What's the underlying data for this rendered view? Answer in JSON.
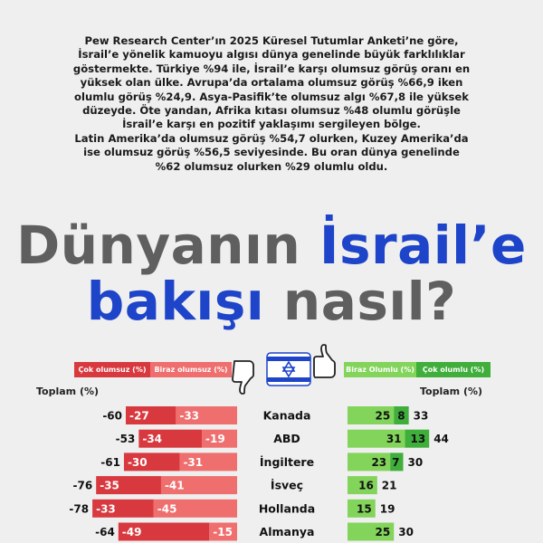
{
  "intro_lines": [
    "Pew Research Center’ın 2025 Küresel Tutumlar Anketi’ne göre,",
    "İsrail’e yönelik kamuoyu algısı dünya genelinde büyük farklılıklar",
    "göstermekte. Türkiye %94 ile, İsrail’e karşı olumsuz görüş oranı en",
    "yüksek olan ülke. Avrupa’da ortalama olumsuz görüş %66,9 iken",
    "olumlu görüş %24,9. Asya-Pasifik’te olumsuz algı %67,8 ile yüksek",
    "düzeyde. Öte yandan, Afrika kıtası olumsuz %48 olumlu görüşle",
    "İsrail’e karşı en pozitif yaklaşımı sergileyen bölge.",
    "Latin Amerika’da olumsuz görüş %54,7 olurken, Kuzey Amerika’da",
    "ise olumsuz görüş %56,5 seviyesinde. Bu oran dünya genelinde",
    "%62 olumsuz olurken %29 olumlu oldu."
  ],
  "title": {
    "line1_part1": "Dünyanın ",
    "line1_part2": "İsrail’e",
    "line2_part1": "bakışı",
    "line2_part2": " nasıl?"
  },
  "legend": {
    "very_negative": "Çok olumsuz (%)",
    "somewhat_negative": "Biraz olumsuz (%)",
    "somewhat_positive": "Biraz Olumlu (%)",
    "very_positive": "Çok olumlu (%)"
  },
  "column_headers": {
    "left": "Toplam (%)",
    "right": "Toplam (%)"
  },
  "icons": {
    "flag": "israel-flag-icon",
    "thumb_down": "thumbs-down-icon",
    "thumb_up": "thumbs-up-icon"
  },
  "colors": {
    "very_negative": "#d8393f",
    "somewhat_negative": "#ef6e6e",
    "somewhat_positive": "#82d45a",
    "very_positive": "#3fae3b",
    "title_blue": "#1d44c9",
    "title_grey": "#5f5f5f"
  },
  "chart_data": {
    "type": "bar",
    "categories": [
      "Kanada",
      "ABD",
      "İngiltere",
      "İsveç",
      "Hollanda",
      "Almanya"
    ],
    "series": [
      {
        "name": "Çok olumsuz (%)",
        "values": [
          -27,
          -34,
          -30,
          -35,
          -33,
          -49
        ]
      },
      {
        "name": "Biraz olumsuz (%)",
        "values": [
          -33,
          -19,
          -31,
          -41,
          -45,
          -15
        ]
      },
      {
        "name": "Biraz Olumlu (%)",
        "values": [
          25,
          31,
          23,
          16,
          15,
          25
        ]
      },
      {
        "name": "Çok olumlu (%)",
        "values": [
          8,
          13,
          7,
          null,
          null,
          null
        ]
      }
    ],
    "total_negative": [
      -60,
      -53,
      -61,
      -76,
      -78,
      -64
    ],
    "total_positive": [
      33,
      44,
      30,
      21,
      19,
      30
    ],
    "xlabel": "",
    "ylabel": "Toplam (%)"
  }
}
